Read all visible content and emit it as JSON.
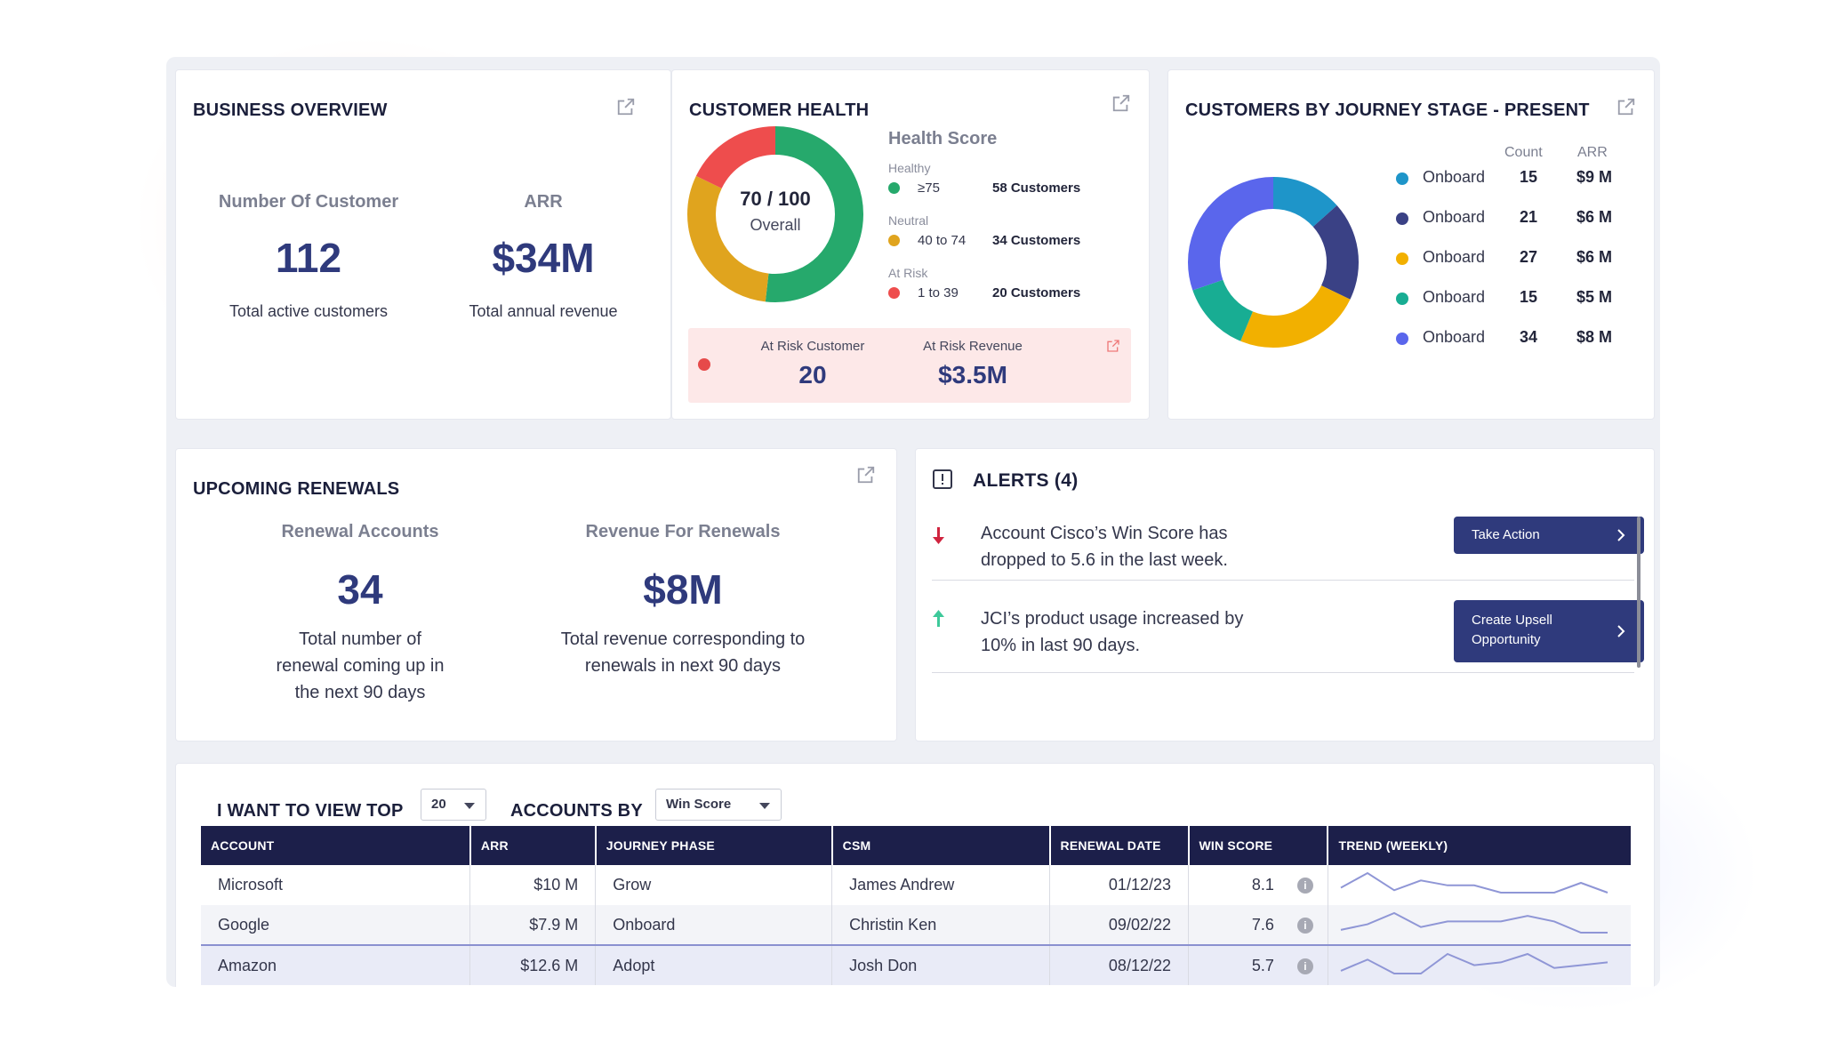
{
  "business_overview": {
    "title": "BUSINESS OVERVIEW",
    "customers_label": "Number Of Customer",
    "customers_value": "112",
    "customers_sub": "Total active customers",
    "arr_label": "ARR",
    "arr_value": "$34M",
    "arr_sub": "Total annual revenue"
  },
  "customer_health": {
    "title": "CUSTOMER HEALTH",
    "donut_score": "70 / 100",
    "donut_caption": "Overall",
    "donut_segments": [
      {
        "name": "Healthy",
        "color": "#26a96c",
        "value": 58
      },
      {
        "name": "Neutral",
        "color": "#e0a41e",
        "value": 34
      },
      {
        "name": "At Risk",
        "color": "#ee4d4d",
        "value": 20
      }
    ],
    "score_title": "Health Score",
    "categories": [
      {
        "label": "Healthy",
        "range": "≥75",
        "count": "58 Customers",
        "color": "#26a96c"
      },
      {
        "label": "Neutral",
        "range": "40 to 74",
        "count": "34 Customers",
        "color": "#e0a41e"
      },
      {
        "label": "At Risk",
        "range": "1 to 39",
        "count": "20 Customers",
        "color": "#ee4d4d"
      }
    ],
    "at_risk_customer_label": "At Risk Customer",
    "at_risk_customer_value": "20",
    "at_risk_revenue_label": "At Risk Revenue",
    "at_risk_revenue_value": "$3.5M"
  },
  "journey_stage": {
    "title": "CUSTOMERS BY JOURNEY STAGE - PRESENT",
    "count_header": "Count",
    "arr_header": "ARR",
    "rows": [
      {
        "name": "Onboard",
        "count": "15",
        "arr": "$9 M",
        "color": "#1e95c9"
      },
      {
        "name": "Onboard",
        "count": "21",
        "arr": "$6 M",
        "color": "#3a4185"
      },
      {
        "name": "Onboard",
        "count": "27",
        "arr": "$6 M",
        "color": "#f2b000"
      },
      {
        "name": "Onboard",
        "count": "15",
        "arr": "$5 M",
        "color": "#18ad93"
      },
      {
        "name": "Onboard",
        "count": "34",
        "arr": "$8 M",
        "color": "#5a66ec"
      }
    ]
  },
  "renewals": {
    "title": "UPCOMING RENEWALS",
    "accounts_label": "Renewal Accounts",
    "accounts_value": "34",
    "accounts_sub_1": "Total  number of",
    "accounts_sub_2": "renewal coming up in",
    "accounts_sub_3": "the next 90 days",
    "revenue_label": "Revenue For Renewals",
    "revenue_value": "$8M",
    "revenue_sub_1": "Total revenue corresponding to",
    "revenue_sub_2": "renewals in next 90 days"
  },
  "alerts": {
    "title": "ALERTS (4)",
    "items": [
      {
        "line1": "Account Cisco’s Win Score has",
        "line2": "dropped to 5.6 in the last week.",
        "direction": "down",
        "color": "#d0243f",
        "action_1": "Take Action",
        "action_2": ""
      },
      {
        "line1": "JCI’s product usage increased by",
        "line2": "10% in last 90 days.",
        "direction": "up",
        "color": "#3ec99a",
        "action_1": "Create Upsell",
        "action_2": "Opportunity"
      }
    ]
  },
  "accounts": {
    "view_top_label": "I WANT TO VIEW TOP",
    "top_value": "20",
    "accounts_by_label": "ACCOUNTS BY",
    "sort_value": "Win Score",
    "columns": [
      "ACCOUNT",
      "ARR",
      "JOURNEY PHASE",
      "CSM",
      "RENEWAL DATE",
      "WIN SCORE",
      "TREND (WEEKLY)"
    ],
    "rows": [
      {
        "account": "Microsoft",
        "arr": "$10 M",
        "phase": "Grow",
        "csm": "James Andrew",
        "renewal": "01/12/23",
        "score": "8.1",
        "trend": [
          3,
          9,
          2,
          6,
          4,
          4,
          1,
          1,
          1,
          5,
          1
        ]
      },
      {
        "account": "Google",
        "arr": "$7.9 M",
        "phase": "Onboard",
        "csm": "Christin Ken",
        "renewal": "09/02/22",
        "score": "7.6",
        "trend": [
          2,
          4,
          8,
          3,
          5,
          5,
          5,
          7,
          5,
          1,
          1
        ]
      },
      {
        "account": "Amazon",
        "arr": "$12.6 M",
        "phase": "Adopt",
        "csm": "Josh Don",
        "renewal": "08/12/22",
        "score": "5.7",
        "trend": [
          2,
          6,
          1,
          1,
          8,
          4,
          5,
          8,
          3,
          4,
          5
        ]
      }
    ]
  }
}
